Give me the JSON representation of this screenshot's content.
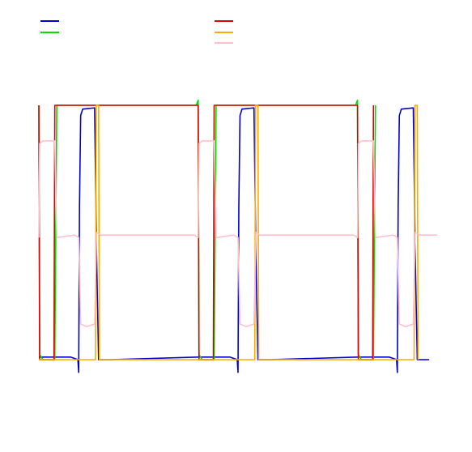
{
  "chart_data": {
    "type": "line",
    "title": "",
    "xlabel": "",
    "ylabel": "",
    "xlim": [
      0,
      10
    ],
    "ylim": [
      0,
      1
    ],
    "grid": false,
    "legend": "top",
    "period": 4,
    "series": [
      {
        "color": "#0000cc",
        "legend_column": 0,
        "legend_row": 0,
        "points": [
          [
            0,
            0.01
          ],
          [
            0.8,
            0.01
          ],
          [
            0.98,
            0.0
          ],
          [
            1.0,
            -0.05
          ],
          [
            1.02,
            0.6
          ],
          [
            1.05,
            0.96
          ],
          [
            1.1,
            0.985
          ],
          [
            1.4,
            0.99
          ],
          [
            1.45,
            0.4
          ],
          [
            1.5,
            0.0
          ],
          [
            1.8,
            0.0
          ]
        ],
        "periodic": true
      },
      {
        "color": "#00dd00",
        "legend_column": 0,
        "legend_row": 1,
        "points": [
          [
            0,
            1.0
          ],
          [
            0.02,
            0.02
          ],
          [
            0.1,
            0.0
          ],
          [
            0.4,
            0.0
          ],
          [
            0.45,
            1.0
          ],
          [
            3.95,
            1.0
          ],
          [
            4.0,
            1.02
          ]
        ],
        "periodic": true
      },
      {
        "color": "#dd0000",
        "legend_column": 1,
        "legend_row": 0,
        "points": [
          [
            0,
            1.0
          ],
          [
            0.02,
            0.0
          ],
          [
            0.38,
            0.0
          ],
          [
            0.4,
            1.0
          ],
          [
            3.95,
            1.0
          ]
        ],
        "periodic": true
      },
      {
        "color": "#ffaa00",
        "legend_column": 1,
        "legend_row": 1,
        "points": [
          [
            0,
            0.0
          ],
          [
            1.42,
            0.0
          ],
          [
            1.44,
            1.0
          ],
          [
            1.5,
            1.0
          ],
          [
            1.52,
            0.0
          ],
          [
            4.0,
            0.0
          ]
        ],
        "periodic": true
      },
      {
        "color": "#ffc0cb",
        "legend_column": 1,
        "legend_row": 2,
        "points": [
          [
            0,
            0.48
          ],
          [
            0.02,
            0.85
          ],
          [
            0.1,
            0.86
          ],
          [
            0.4,
            0.86
          ],
          [
            0.45,
            0.48
          ],
          [
            0.9,
            0.49
          ],
          [
            1.0,
            0.48
          ],
          [
            1.05,
            0.14
          ],
          [
            1.2,
            0.13
          ],
          [
            1.4,
            0.14
          ],
          [
            1.45,
            0.5
          ],
          [
            1.55,
            0.49
          ],
          [
            2.0,
            0.49
          ],
          [
            3.9,
            0.49
          ],
          [
            4.0,
            0.48
          ]
        ],
        "periodic": true
      }
    ]
  }
}
